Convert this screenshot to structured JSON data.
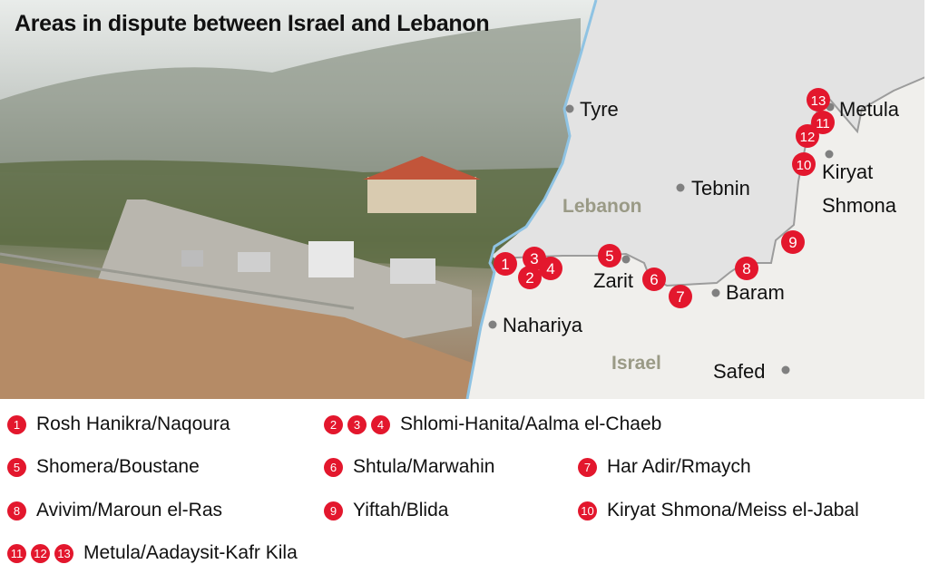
{
  "title": "Areas in dispute between Israel and Lebanon",
  "colors": {
    "marker": "#e3172d",
    "lebanon_fill": "#e3e3e3",
    "israel_fill": "#f0efec",
    "sea_line": "#8fc3e3",
    "country_label": "#9a9a86",
    "city_dot": "#808080"
  },
  "map": {
    "countries": [
      {
        "name": "Lebanon"
      },
      {
        "name": "Israel"
      }
    ],
    "cities": [
      "Tyre",
      "Tebnin",
      "Zarit",
      "Baram",
      "Nahariya",
      "Safed",
      "Metula",
      "Kiryat",
      "Shmona"
    ],
    "markers": [
      "1",
      "2",
      "3",
      "4",
      "5",
      "6",
      "7",
      "8",
      "9",
      "10",
      "11",
      "12",
      "13"
    ]
  },
  "legend": [
    {
      "numbers": [
        "1"
      ],
      "label": "Rosh Hanikra/Naqoura"
    },
    {
      "numbers": [
        "2",
        "3",
        "4"
      ],
      "label": "Shlomi-Hanita/Aalma el-Chaeb"
    },
    {
      "numbers": [
        "5"
      ],
      "label": "Shomera/Boustane"
    },
    {
      "numbers": [
        "6"
      ],
      "label": "Shtula/Marwahin"
    },
    {
      "numbers": [
        "7"
      ],
      "label": "Har Adir/Rmaych"
    },
    {
      "numbers": [
        "8"
      ],
      "label": "Avivim/Maroun el-Ras"
    },
    {
      "numbers": [
        "9"
      ],
      "label": "Yiftah/Blida"
    },
    {
      "numbers": [
        "10"
      ],
      "label": "Kiryat Shmona/Meiss el-Jabal"
    },
    {
      "numbers": [
        "11",
        "12",
        "13"
      ],
      "label": "Metula/Aadaysit-Kafr Kila"
    }
  ]
}
